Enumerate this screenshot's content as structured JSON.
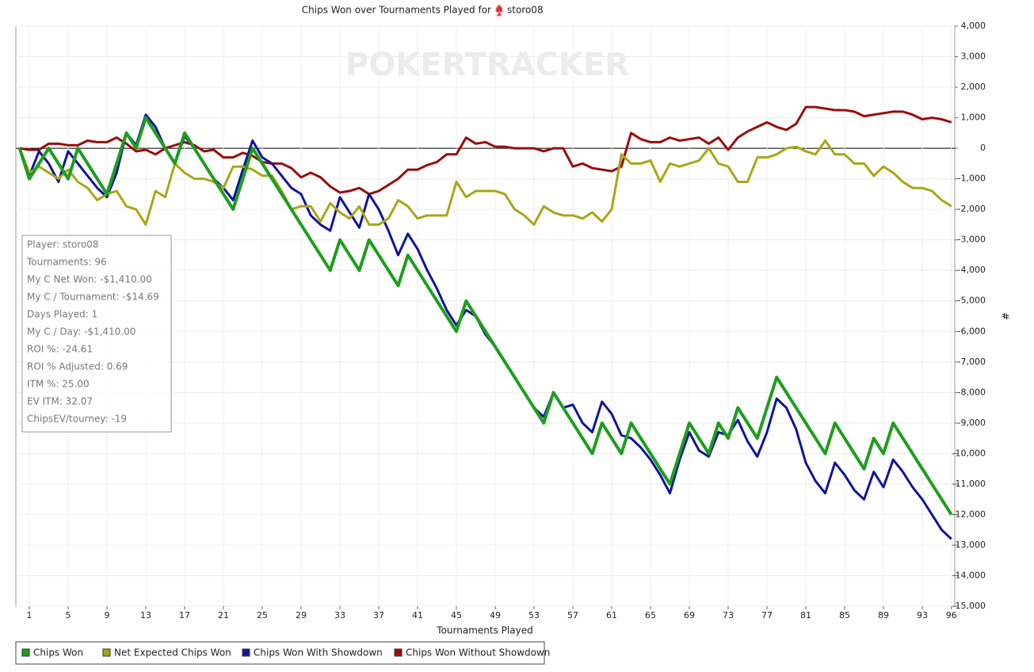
{
  "chart_data": {
    "type": "line",
    "title": "Chips Won over Tournaments Played for",
    "player": "storo08",
    "watermark": "POKERTRACKER",
    "x_label": "Tournaments Played",
    "y_label": "#",
    "x": [
      0,
      1,
      2,
      3,
      4,
      5,
      6,
      7,
      8,
      9,
      10,
      11,
      12,
      13,
      14,
      15,
      16,
      17,
      18,
      19,
      20,
      21,
      22,
      23,
      24,
      25,
      26,
      27,
      28,
      29,
      30,
      31,
      32,
      33,
      34,
      35,
      36,
      37,
      38,
      39,
      40,
      41,
      42,
      43,
      44,
      45,
      46,
      47,
      48,
      49,
      50,
      51,
      52,
      53,
      54,
      55,
      56,
      57,
      58,
      59,
      60,
      61,
      62,
      63,
      64,
      65,
      66,
      67,
      68,
      69,
      70,
      71,
      72,
      73,
      74,
      75,
      76,
      77,
      78,
      79,
      80,
      81,
      82,
      83,
      84,
      85,
      86,
      87,
      88,
      89,
      90,
      91,
      92,
      93,
      94,
      95,
      96
    ],
    "xlim": [
      0,
      96
    ],
    "xticks": [
      1,
      5,
      9,
      13,
      17,
      21,
      25,
      29,
      33,
      37,
      41,
      45,
      49,
      53,
      57,
      61,
      65,
      69,
      73,
      77,
      81,
      85,
      89,
      93,
      96
    ],
    "ylim": [
      -15000,
      4000
    ],
    "yticks": [
      {
        "value": 4000,
        "label": "4,000"
      },
      {
        "value": 3000,
        "label": "3,000"
      },
      {
        "value": 2000,
        "label": "2,000"
      },
      {
        "value": 1000,
        "label": "1,000"
      },
      0,
      {
        "value": -1000,
        "label": "-1,000"
      },
      {
        "value": -2000,
        "label": "-2,000"
      },
      {
        "value": -3000,
        "label": "-3,000"
      },
      {
        "value": -4000,
        "label": "-4,000"
      },
      {
        "value": -5000,
        "label": "-5,000"
      },
      {
        "value": -6000,
        "label": "-6,000"
      },
      {
        "value": -7000,
        "label": "-7,000"
      },
      {
        "value": -8000,
        "label": "-8,000"
      },
      {
        "value": -9000,
        "label": "-9,000"
      },
      {
        "value": -10000,
        "label": "-10,000"
      },
      {
        "value": -11000,
        "label": "-11,000"
      },
      {
        "value": -12000,
        "label": "-12,000"
      },
      {
        "value": -13000,
        "label": "-13,000"
      },
      {
        "value": -14000,
        "label": "-14,000"
      },
      {
        "value": -15000,
        "label": "-15,000"
      }
    ],
    "grid": true,
    "legend": "bottom",
    "stats": [
      "Player: storo08",
      "Tournaments: 96",
      "My C Net Won: -$1,410.00",
      "My C / Tournament: -$14.69",
      "Days Played: 1",
      "My C / Day: -$1,410.00",
      "ROI %: -24.61",
      "ROI % Adjusted: 0.69",
      "ITM %: 25.00",
      "EV ITM: 32.07",
      "ChipsEV/tourney: -19"
    ],
    "series": [
      {
        "name": "Chips Won",
        "color": "#1e9e1e",
        "values": [
          0,
          -1000,
          -500,
          0,
          -500,
          -1000,
          0,
          -500,
          -1000,
          -1500,
          -500,
          500,
          0,
          1000,
          500,
          0,
          -500,
          500,
          0,
          -500,
          -1000,
          -1500,
          -2000,
          -1000,
          0,
          -500,
          -1000,
          -1500,
          -2000,
          -2500,
          -3000,
          -3500,
          -4000,
          -3000,
          -3500,
          -4000,
          -3000,
          -3500,
          -4000,
          -4500,
          -3500,
          -4000,
          -4500,
          -5000,
          -5500,
          -6000,
          -5000,
          -5500,
          -6000,
          -6500,
          -7000,
          -7500,
          -8000,
          -8500,
          -9000,
          -8000,
          -8500,
          -9000,
          -9500,
          -10000,
          -9000,
          -9500,
          -10000,
          -9000,
          -9500,
          -10000,
          -10500,
          -11000,
          -10000,
          -9000,
          -9500,
          -10000,
          -9000,
          -9500,
          -8500,
          -9000,
          -9500,
          -8500,
          -7500,
          -8000,
          -8500,
          -9000,
          -9500,
          -10000,
          -9000,
          -9500,
          -10000,
          -10500,
          -9500,
          -10000,
          -9000,
          -9500,
          -10000,
          -10500,
          -11000,
          -11500,
          -12000
        ]
      },
      {
        "name": "Net Expected Chips Won",
        "color": "#a8a616",
        "values": [
          0,
          -800,
          -600,
          -800,
          -1000,
          -700,
          -1100,
          -1300,
          -1700,
          -1500,
          -1400,
          -1900,
          -2000,
          -2500,
          -1400,
          -1600,
          -500,
          -800,
          -1000,
          -1000,
          -1100,
          -1300,
          -600,
          -600,
          -700,
          -900,
          -900,
          -1400,
          -2000,
          -1900,
          -1900,
          -2400,
          -1800,
          -2100,
          -2300,
          -1900,
          -2500,
          -2500,
          -2300,
          -1700,
          -1900,
          -2300,
          -2200,
          -2200,
          -2200,
          -1100,
          -1600,
          -1400,
          -1400,
          -1400,
          -1500,
          -2000,
          -2200,
          -2500,
          -1900,
          -2100,
          -2200,
          -2200,
          -2300,
          -2100,
          -2400,
          -2000,
          -200,
          -500,
          -500,
          -400,
          -1100,
          -500,
          -600,
          -500,
          -400,
          0,
          -500,
          -600,
          -1100,
          -1100,
          -300,
          -300,
          -200,
          0,
          50,
          -100,
          -200,
          250,
          -200,
          -200,
          -500,
          -500,
          -900,
          -600,
          -800,
          -1100,
          -1300,
          -1300,
          -1400,
          -1700,
          -1900
        ]
      },
      {
        "name": "Chips Won With Showdown",
        "color": "#10149a",
        "values": [
          0,
          -900,
          -100,
          -500,
          -1100,
          -100,
          -500,
          -900,
          -1300,
          -1600,
          -800,
          500,
          100,
          1100,
          700,
          0,
          -500,
          400,
          0,
          -500,
          -1000,
          -1300,
          -1700,
          -700,
          250,
          -300,
          -500,
          -900,
          -1300,
          -1500,
          -2200,
          -2500,
          -2700,
          -1600,
          -2100,
          -2600,
          -1500,
          -2000,
          -2700,
          -3500,
          -2800,
          -3300,
          -4000,
          -4600,
          -5300,
          -5800,
          -5300,
          -5500,
          -6100,
          -6500,
          -7000,
          -7500,
          -8000,
          -8500,
          -8800,
          -8000,
          -8500,
          -8400,
          -9000,
          -9300,
          -8300,
          -8700,
          -9400,
          -9500,
          -9800,
          -10200,
          -10700,
          -11300,
          -10200,
          -9300,
          -9900,
          -10100,
          -9300,
          -9400,
          -8900,
          -9600,
          -10100,
          -9300,
          -8200,
          -8500,
          -9200,
          -10300,
          -10900,
          -11300,
          -10300,
          -10700,
          -11200,
          -11500,
          -10600,
          -11100,
          -10200,
          -10600,
          -11100,
          -11500,
          -12000,
          -12500,
          -12800
        ]
      },
      {
        "name": "Chips Won Without Showdown",
        "color": "#9a0c0c",
        "values": [
          0,
          -50,
          -50,
          150,
          150,
          100,
          100,
          250,
          200,
          200,
          350,
          150,
          -100,
          -50,
          -200,
          0,
          100,
          200,
          100,
          -100,
          -50,
          -300,
          -300,
          -150,
          -250,
          -450,
          -500,
          -500,
          -650,
          -950,
          -800,
          -950,
          -1250,
          -1450,
          -1400,
          -1300,
          -1500,
          -1400,
          -1200,
          -1000,
          -700,
          -700,
          -550,
          -450,
          -200,
          -200,
          350,
          150,
          200,
          50,
          50,
          0,
          0,
          0,
          -100,
          0,
          0,
          -600,
          -500,
          -650,
          -700,
          -750,
          -600,
          500,
          300,
          200,
          200,
          350,
          250,
          300,
          350,
          150,
          350,
          -50,
          350,
          550,
          700,
          850,
          700,
          600,
          800,
          1350,
          1350,
          1300,
          1250,
          1250,
          1200,
          1050,
          1100,
          1150,
          1200,
          1200,
          1100,
          950,
          1000,
          950,
          850
        ]
      }
    ]
  }
}
